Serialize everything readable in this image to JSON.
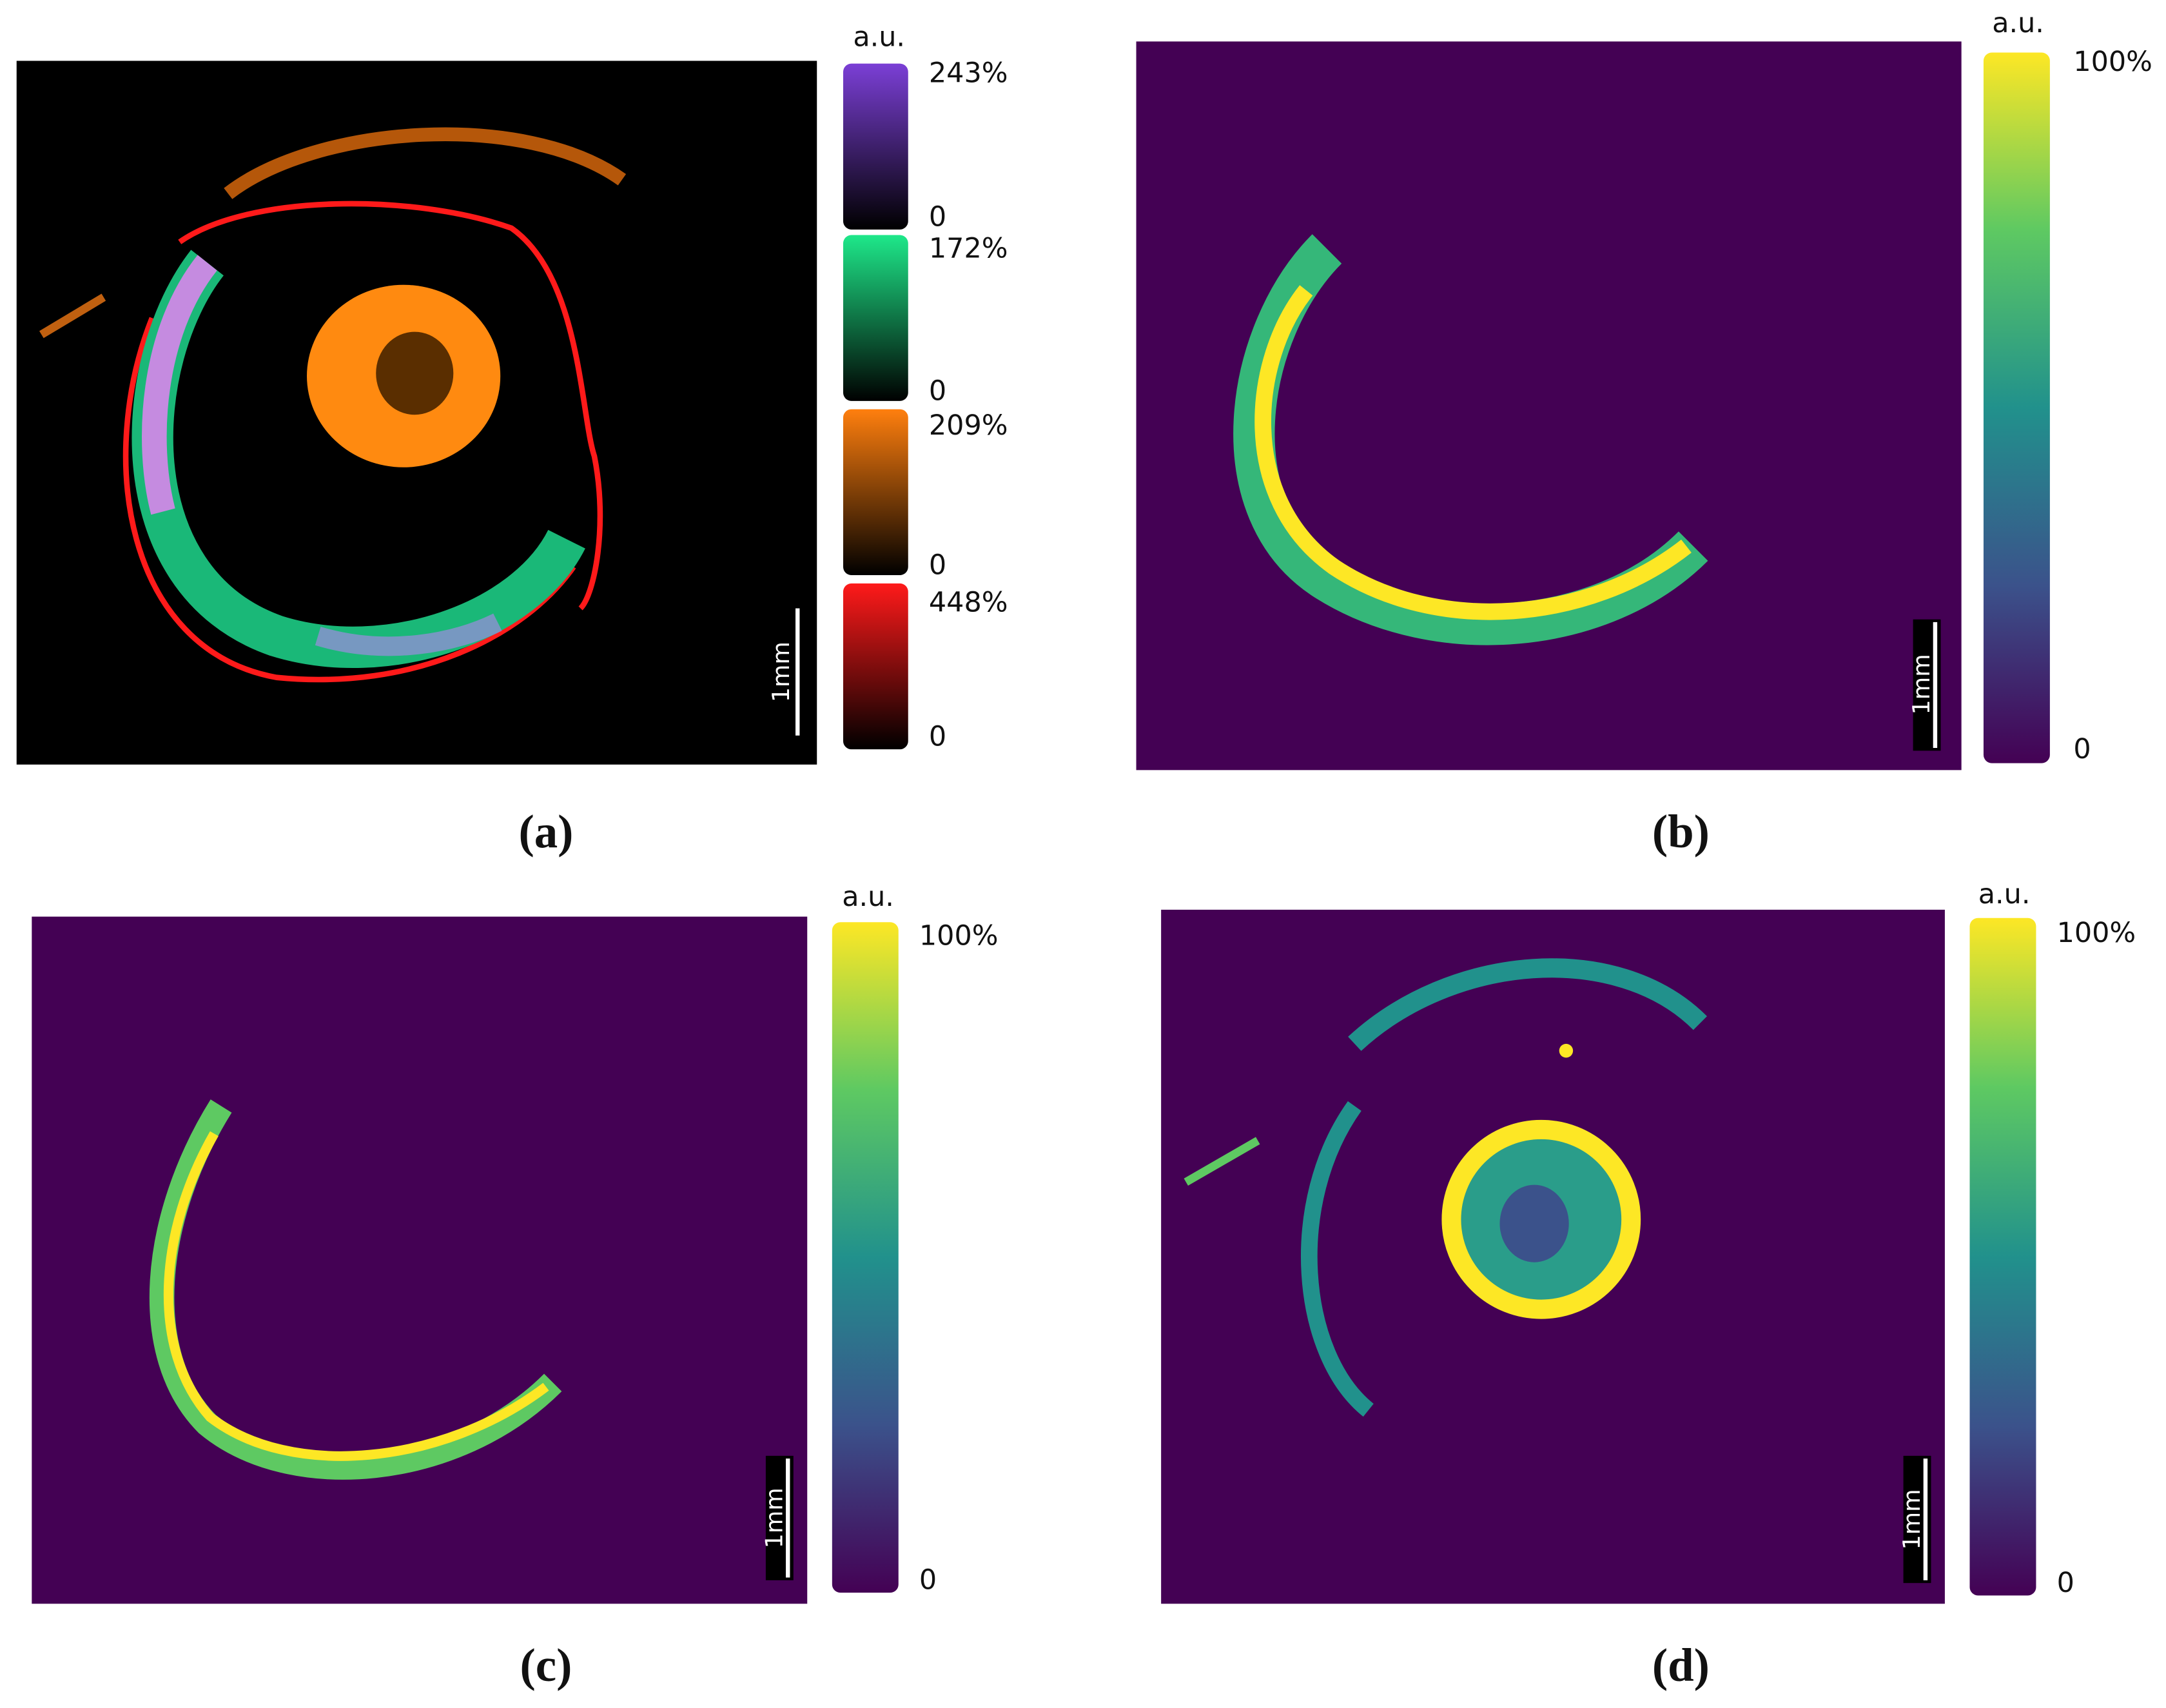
{
  "panels": [
    {
      "caption": "(a)",
      "unit": "a.u.",
      "scale_bar": "1mm",
      "colorbars": [
        {
          "max": "243%",
          "min": "0"
        },
        {
          "max": "172%",
          "min": "0"
        },
        {
          "max": "209%",
          "min": "0"
        },
        {
          "max": "448%",
          "min": "0"
        }
      ]
    },
    {
      "caption": "(b)",
      "unit": "a.u.",
      "scale_bar": "1mm",
      "colorbars": [
        {
          "max": "100%",
          "min": "0"
        }
      ]
    },
    {
      "caption": "(c)",
      "unit": "a.u.",
      "scale_bar": "1mm",
      "colorbars": [
        {
          "max": "100%",
          "min": "0"
        }
      ]
    },
    {
      "caption": "(d)",
      "unit": "a.u.",
      "scale_bar": "1mm",
      "colorbars": [
        {
          "max": "100%",
          "min": "0"
        }
      ]
    }
  ]
}
